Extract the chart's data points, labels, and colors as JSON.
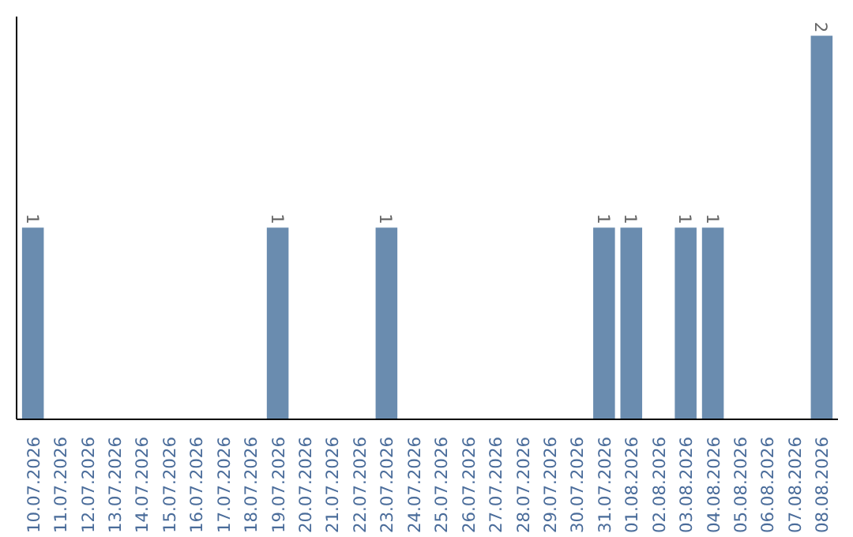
{
  "chart_data": {
    "type": "bar",
    "categories": [
      "10.07.2026",
      "11.07.2026",
      "12.07.2026",
      "13.07.2026",
      "14.07.2026",
      "15.07.2026",
      "16.07.2026",
      "17.07.2026",
      "18.07.2026",
      "19.07.2026",
      "20.07.2026",
      "21.07.2026",
      "22.07.2026",
      "23.07.2026",
      "24.07.2026",
      "25.07.2026",
      "26.07.2026",
      "27.07.2026",
      "28.07.2026",
      "29.07.2026",
      "30.07.2026",
      "31.07.2026",
      "01.08.2026",
      "02.08.2026",
      "03.08.2026",
      "04.08.2026",
      "05.08.2026",
      "06.08.2026",
      "07.08.2026",
      "08.08.2026"
    ],
    "values": [
      1,
      0,
      0,
      0,
      0,
      0,
      0,
      0,
      0,
      1,
      0,
      0,
      0,
      1,
      0,
      0,
      0,
      0,
      0,
      0,
      0,
      1,
      1,
      0,
      1,
      1,
      0,
      0,
      0,
      2
    ],
    "value_labels": [
      "1",
      null,
      null,
      null,
      null,
      null,
      null,
      null,
      null,
      "1",
      null,
      null,
      null,
      "1",
      null,
      null,
      null,
      null,
      null,
      null,
      null,
      "1",
      "1",
      null,
      "1",
      "1",
      null,
      null,
      null,
      "2"
    ],
    "color": "#6a8caf",
    "grid": false,
    "tick_labels": "x"
  }
}
